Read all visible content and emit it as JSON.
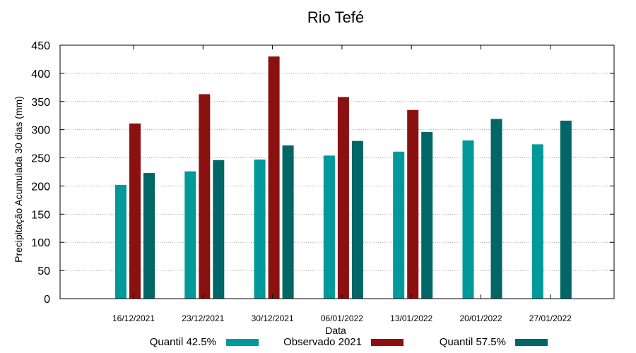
{
  "chart_data": {
    "type": "bar",
    "title": "Rio Tefé",
    "xlabel": "Data",
    "ylabel": "Precipitação Acumulada 30 dias (mm)",
    "ylim": [
      0,
      450
    ],
    "yticks": [
      0,
      50,
      100,
      150,
      200,
      250,
      300,
      350,
      400,
      450
    ],
    "grid": true,
    "legend_position": "bottom",
    "categories": [
      "16/12/2021",
      "23/12/2021",
      "30/12/2021",
      "06/01/2022",
      "13/01/2022",
      "20/01/2022",
      "27/01/2022"
    ],
    "series": [
      {
        "name": "Quantil 42.5%",
        "color": "#009999",
        "values": [
          202,
          226,
          247,
          254,
          261,
          281,
          274
        ]
      },
      {
        "name": "Observado 2021",
        "color": "#8b1010",
        "values": [
          311,
          363,
          430,
          358,
          335,
          null,
          null
        ]
      },
      {
        "name": "Quantil 57.5%",
        "color": "#006666",
        "values": [
          223,
          246,
          272,
          280,
          296,
          319,
          316
        ]
      }
    ]
  }
}
